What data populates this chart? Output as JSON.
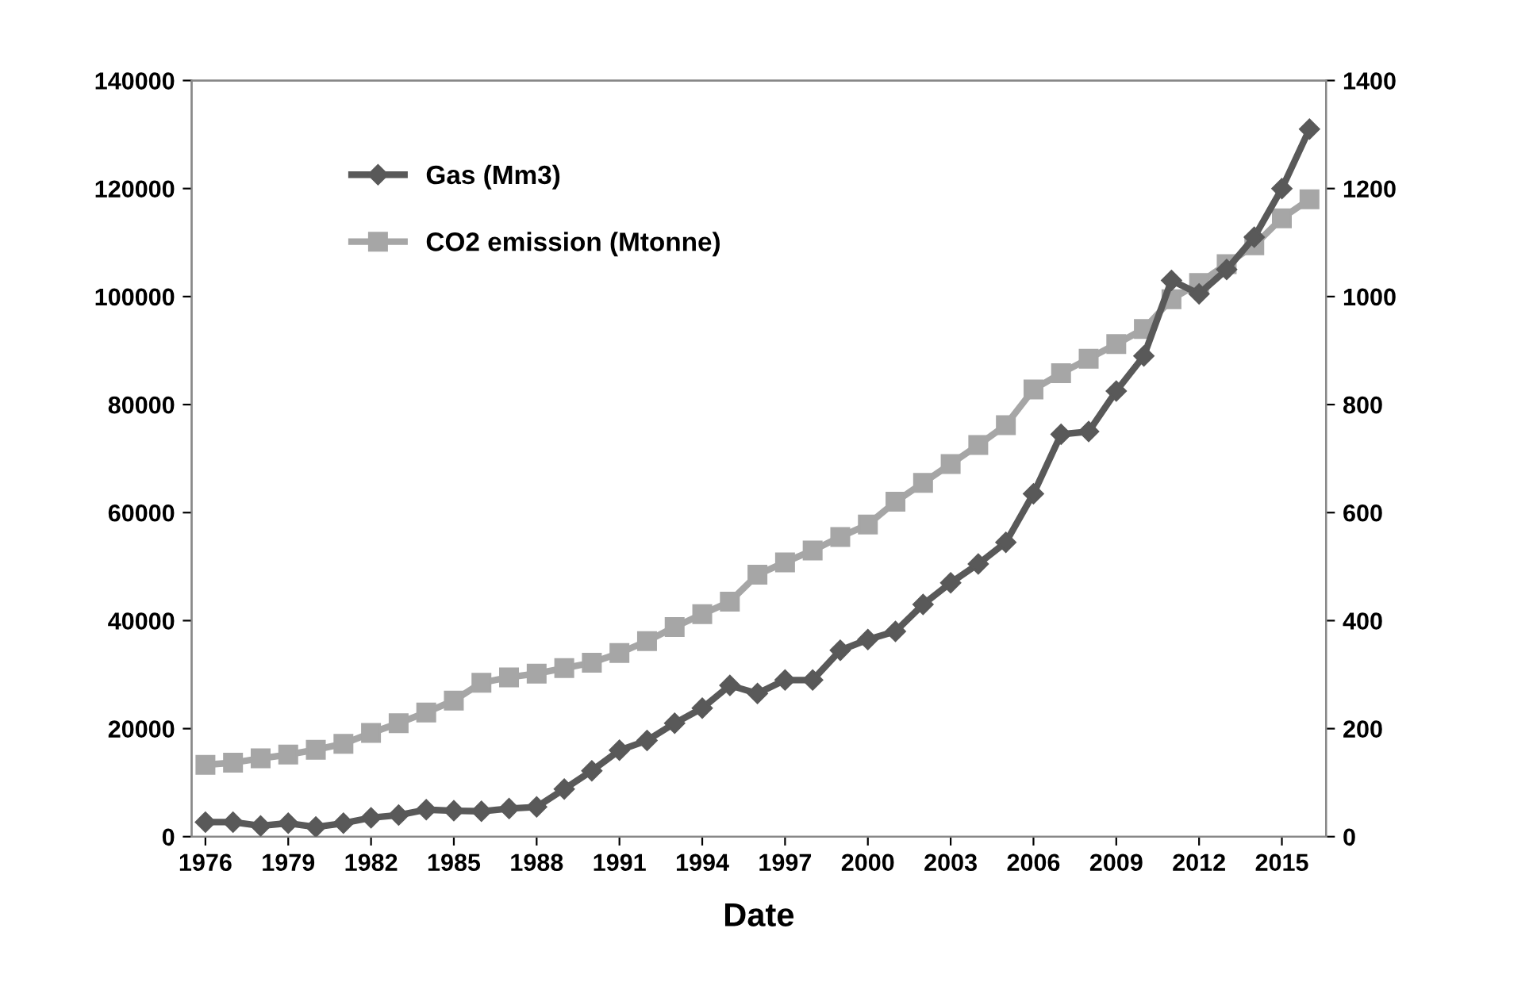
{
  "chart_data": {
    "type": "line",
    "xlabel": "Date",
    "x": [
      1976,
      1977,
      1978,
      1979,
      1980,
      1981,
      1982,
      1983,
      1984,
      1985,
      1986,
      1987,
      1988,
      1989,
      1990,
      1991,
      1992,
      1993,
      1994,
      1995,
      1996,
      1997,
      1998,
      1999,
      2000,
      2001,
      2002,
      2003,
      2004,
      2005,
      2006,
      2007,
      2008,
      2009,
      2010,
      2011,
      2012,
      2013,
      2014,
      2015,
      2016
    ],
    "series": [
      {
        "name": "Gas (Mm3)",
        "color": "#595959",
        "marker": "diamond",
        "values": [
          2700,
          2700,
          2000,
          2500,
          1800,
          2500,
          3500,
          4000,
          5000,
          4800,
          4700,
          5200,
          5500,
          8800,
          12200,
          16000,
          17800,
          21000,
          23800,
          28000,
          26500,
          29000,
          29000,
          34500,
          36500,
          38000,
          43000,
          47000,
          50500,
          54500,
          63500,
          74500,
          75000,
          82500,
          89000,
          103000,
          100500,
          105000,
          111000,
          120000,
          131000
        ]
      },
      {
        "name": "CO2 emission (Mtonne)",
        "color": "#a6a6a6",
        "marker": "square",
        "axis": "y2",
        "values": [
          133,
          137,
          145,
          152,
          161,
          172,
          192,
          210,
          230,
          252,
          285,
          295,
          302,
          312,
          322,
          340,
          362,
          388,
          412,
          435,
          485,
          508,
          530,
          555,
          578,
          620,
          655,
          690,
          725,
          762,
          828,
          858,
          885,
          912,
          940,
          995,
          1025,
          1060,
          1095,
          1145,
          1180
        ]
      }
    ],
    "xlim": [
      1975.5,
      2016.6
    ],
    "xticks": [
      1976,
      1979,
      1982,
      1985,
      1988,
      1991,
      1994,
      1997,
      2000,
      2003,
      2006,
      2009,
      2012,
      2015
    ],
    "ylim": [
      0,
      140000
    ],
    "yticks": [
      0,
      20000,
      40000,
      60000,
      80000,
      100000,
      120000,
      140000
    ],
    "y2lim": [
      0,
      1400
    ],
    "y2ticks": [
      0,
      200,
      400,
      600,
      800,
      1000,
      1200,
      1400
    ],
    "grid": false,
    "legend": "top left",
    "line_style": "solid"
  }
}
